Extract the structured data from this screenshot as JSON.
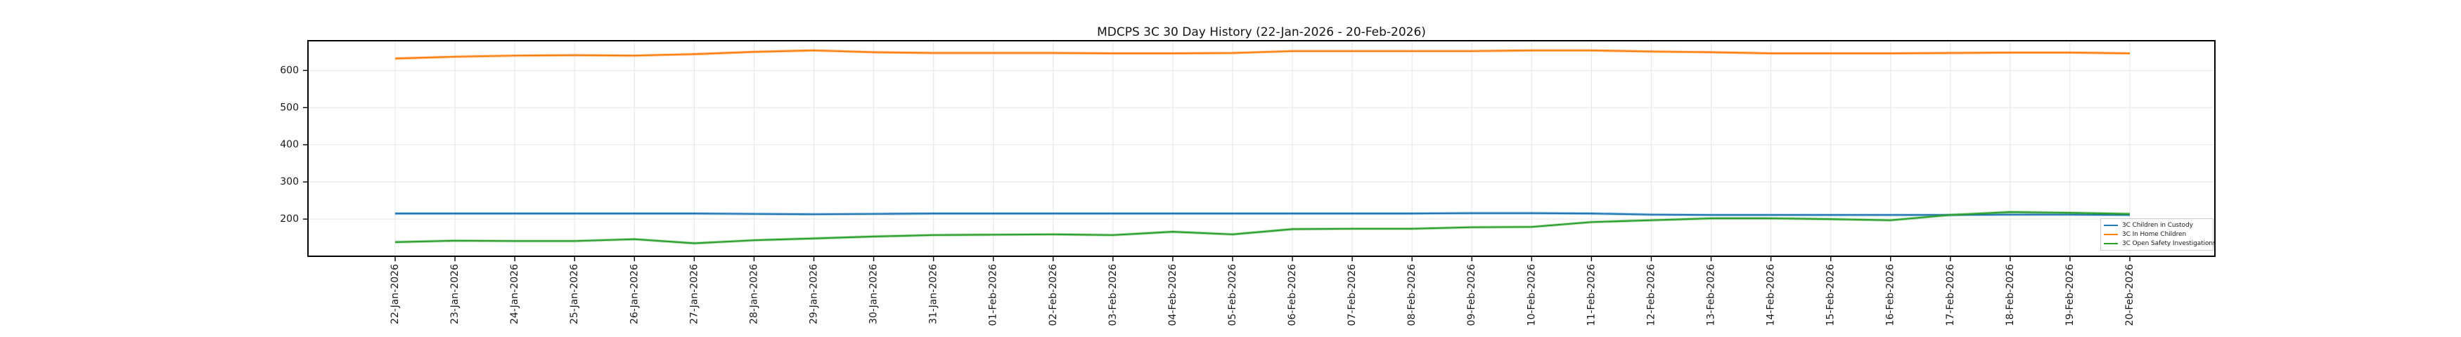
{
  "chart_data": {
    "type": "line",
    "title": "MDCPS 3C 30 Day History (22-Jan-2026 - 20-Feb-2026)",
    "xlabel": "",
    "ylabel": "",
    "x_labels": [
      "22-Jan-2026",
      "23-Jan-2026",
      "24-Jan-2026",
      "25-Jan-2026",
      "26-Jan-2026",
      "27-Jan-2026",
      "28-Jan-2026",
      "29-Jan-2026",
      "30-Jan-2026",
      "31-Jan-2026",
      "01-Feb-2026",
      "02-Feb-2026",
      "03-Feb-2026",
      "04-Feb-2026",
      "05-Feb-2026",
      "06-Feb-2026",
      "07-Feb-2026",
      "08-Feb-2026",
      "09-Feb-2026",
      "10-Feb-2026",
      "11-Feb-2026",
      "12-Feb-2026",
      "13-Feb-2026",
      "14-Feb-2026",
      "15-Feb-2026",
      "16-Feb-2026",
      "17-Feb-2026",
      "18-Feb-2026",
      "19-Feb-2026",
      "20-Feb-2026"
    ],
    "series": [
      {
        "name": "3C Children in Custody",
        "color": "#1f77b4",
        "values": [
          215,
          215,
          215,
          215,
          215,
          215,
          214,
          213,
          214,
          215,
          215,
          215,
          215,
          215,
          215,
          215,
          215,
          215,
          216,
          216,
          215,
          212,
          211,
          211,
          211,
          211,
          211,
          212,
          212,
          211
        ]
      },
      {
        "name": "3C In Home Children",
        "color": "#ff7f0e",
        "values": [
          632,
          637,
          640,
          641,
          640,
          644,
          650,
          654,
          649,
          647,
          647,
          647,
          646,
          646,
          647,
          652,
          652,
          652,
          652,
          654,
          654,
          651,
          649,
          646,
          646,
          646,
          647,
          648,
          648,
          646
        ]
      },
      {
        "name": "3C Open Safety Investigations",
        "color": "#2ca02c",
        "values": [
          138,
          142,
          141,
          141,
          146,
          135,
          143,
          148,
          153,
          157,
          158,
          159,
          157,
          166,
          159,
          173,
          174,
          174,
          178,
          179,
          192,
          197,
          202,
          202,
          200,
          197,
          211,
          219,
          217,
          214
        ]
      }
    ],
    "yticks": [
      200,
      300,
      400,
      500,
      600
    ],
    "ylim": [
      100,
      680
    ],
    "grid": true,
    "legend_position": "lower right",
    "x_tick_rotation_deg": 90
  },
  "style_colors": {
    "grid": "#e9e9e9",
    "spine": "#000000",
    "tick": "#000000",
    "tick_label": "#1a1a1a",
    "legend_border": "#cccccc"
  }
}
